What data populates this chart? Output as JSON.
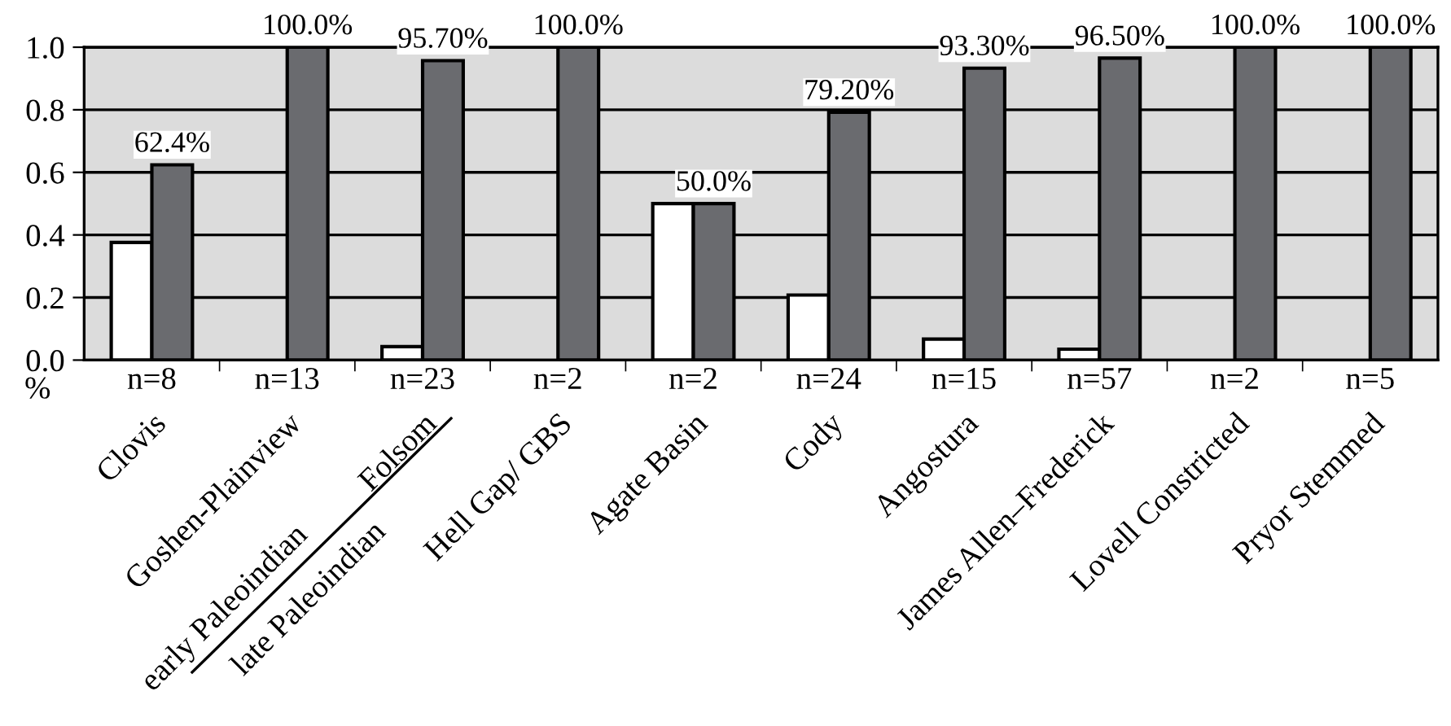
{
  "chart_data": {
    "type": "bar",
    "categories": [
      "Clovis",
      "Goshen-Plainview",
      "Folsom",
      "Hell Gap/ GBS",
      "Agate Basin",
      "Cody",
      "Angostura",
      "James Allen–Frederick",
      "Lovell Constricted",
      "Pryor Stemmed"
    ],
    "series": [
      {
        "color": "#ffffff",
        "values": [
          0.376,
          null,
          0.043,
          null,
          0.5,
          0.208,
          0.067,
          0.035,
          null,
          null
        ]
      },
      {
        "color": "#6a6b6f",
        "values": [
          0.624,
          1.0,
          0.957,
          1.0,
          0.5,
          0.792,
          0.933,
          0.965,
          1.0,
          1.0
        ],
        "value_labels": [
          "62.4%",
          "100.0%",
          "95.70%",
          "100.0%",
          "50.0%",
          "79.20%",
          "93.30%",
          "96.50%",
          "100.0%",
          "100.0%"
        ]
      }
    ],
    "ylim": [
      0,
      1.0
    ],
    "yticks": [
      {
        "value": 0,
        "label": "0.0"
      },
      {
        "value": 0.2,
        "label": "0.2"
      },
      {
        "value": 0.4,
        "label": "0.4"
      },
      {
        "value": 0.6,
        "label": "0.6"
      },
      {
        "value": 0.8,
        "label": "0.8"
      },
      {
        "value": 1.0,
        "label": "1.0"
      }
    ],
    "grid": "y",
    "legend": false,
    "annotations": [
      "%",
      "early Paleoindian",
      "late Paleoindian",
      "n=8",
      "n=13",
      "n=23",
      "n=2",
      "n=2",
      "n=24",
      "n=15",
      "n=57",
      "n=2",
      "n=5"
    ]
  }
}
